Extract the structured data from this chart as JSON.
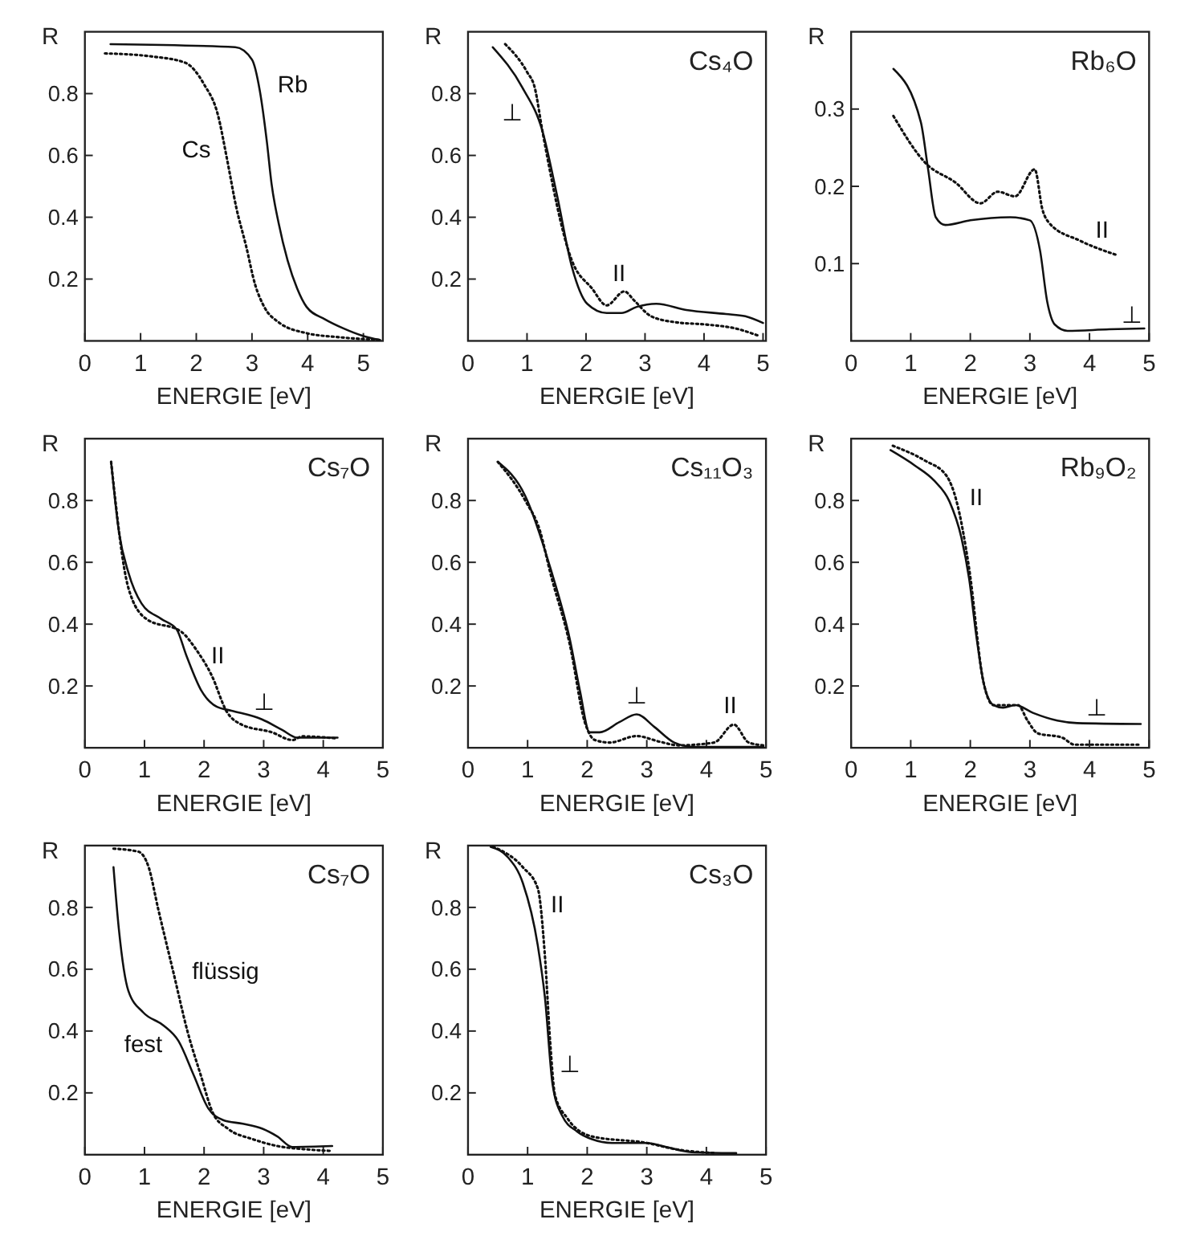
{
  "chart_data": [
    {
      "type": "line",
      "xlabel": "ENERGIE [eV]",
      "ylabel": "R",
      "xlim": [
        0,
        5.35
      ],
      "ylim": [
        0,
        1
      ],
      "xticks": [
        0,
        1,
        2,
        3,
        4,
        5
      ],
      "yticks": [
        0.2,
        0.4,
        0.6,
        0.8
      ],
      "grid": false,
      "series": [
        {
          "name": "Rb",
          "color": "#111111",
          "line_style": "solid",
          "x": [
            0.46,
            2.7,
            3.0,
            3.14,
            3.27,
            3.35,
            3.48,
            3.64,
            3.81,
            3.98,
            4.31,
            4.65,
            4.98,
            5.3
          ],
          "values": [
            0.96,
            0.95,
            0.91,
            0.81,
            0.64,
            0.51,
            0.38,
            0.26,
            0.17,
            0.11,
            0.07,
            0.04,
            0.017,
            0.003
          ]
        },
        {
          "name": "Cs",
          "color": "#111111",
          "line_style": "dotted",
          "x": [
            0.36,
            1.21,
            1.8,
            2.14,
            2.39,
            2.55,
            2.72,
            2.89,
            3.06,
            3.22,
            3.48,
            3.98,
            4.56,
            5.3
          ],
          "values": [
            0.93,
            0.92,
            0.9,
            0.83,
            0.73,
            0.59,
            0.43,
            0.31,
            0.18,
            0.11,
            0.06,
            0.025,
            0.012,
            0.003
          ]
        }
      ]
    },
    {
      "type": "line",
      "title": "Cs₄O",
      "xlabel": "ENERGIE [eV]",
      "ylabel": "R",
      "xlim": [
        0,
        5.05
      ],
      "ylim": [
        0,
        1
      ],
      "xticks": [
        0,
        1,
        2,
        3,
        4,
        5
      ],
      "yticks": [
        0.2,
        0.4,
        0.6,
        0.8
      ],
      "grid": false,
      "series": [
        {
          "name": "⊥",
          "color": "#111111",
          "line_style": "solid",
          "x": [
            0.42,
            0.92,
            1.26,
            1.51,
            1.76,
            2.02,
            2.35,
            2.6,
            2.86,
            3.19,
            3.7,
            4.37,
            4.7,
            5.0
          ],
          "values": [
            0.95,
            0.82,
            0.68,
            0.47,
            0.24,
            0.12,
            0.09,
            0.09,
            0.11,
            0.12,
            0.1,
            0.087,
            0.08,
            0.058
          ]
        },
        {
          "name": "II",
          "color": "#111111",
          "line_style": "dotted",
          "x": [
            0.63,
            1.0,
            1.13,
            1.26,
            1.76,
            2.1,
            2.35,
            2.65,
            2.82,
            3.1,
            3.53,
            4.03,
            4.54,
            4.92
          ],
          "values": [
            0.96,
            0.87,
            0.82,
            0.68,
            0.26,
            0.17,
            0.115,
            0.16,
            0.13,
            0.08,
            0.06,
            0.053,
            0.04,
            0.017
          ]
        }
      ]
    },
    {
      "type": "line",
      "title": "Rb₆O",
      "xlabel": "ENERGIE [eV]",
      "ylabel": "R",
      "xlim": [
        0,
        5
      ],
      "ylim": [
        0,
        0.4
      ],
      "xticks": [
        0,
        1,
        2,
        3,
        4,
        5
      ],
      "yticks": [
        0.1,
        0.2,
        0.3
      ],
      "grid": false,
      "series": [
        {
          "name": "⊥",
          "color": "#111111",
          "line_style": "solid",
          "x": [
            0.71,
            1.17,
            1.29,
            1.42,
            1.58,
            2.0,
            2.67,
            3.0,
            3.17,
            3.29,
            3.42,
            3.63,
            4.33,
            4.92
          ],
          "values": [
            0.352,
            0.283,
            0.223,
            0.16,
            0.15,
            0.156,
            0.16,
            0.156,
            0.117,
            0.051,
            0.021,
            0.013,
            0.015,
            0.016
          ]
        },
        {
          "name": "II",
          "color": "#111111",
          "line_style": "dotted",
          "x": [
            0.71,
            1.25,
            1.75,
            2.17,
            2.46,
            2.75,
            3.08,
            3.21,
            3.33,
            3.83,
            4.46
          ],
          "values": [
            0.291,
            0.23,
            0.205,
            0.178,
            0.193,
            0.187,
            0.222,
            0.17,
            0.152,
            0.13,
            0.111
          ]
        }
      ]
    },
    {
      "type": "line",
      "title": "Cs₇O",
      "xlabel": "ENERGIE [eV]",
      "ylabel": "R",
      "xlim": [
        0,
        5
      ],
      "ylim": [
        0,
        1
      ],
      "xticks": [
        0,
        1,
        2,
        3,
        4,
        5
      ],
      "yticks": [
        0.2,
        0.4,
        0.6,
        0.8
      ],
      "grid": false,
      "series": [
        {
          "name": "⊥",
          "color": "#111111",
          "line_style": "solid",
          "x": [
            0.44,
            0.57,
            0.73,
            0.95,
            1.28,
            1.54,
            1.7,
            1.96,
            2.21,
            2.46,
            2.97,
            3.31,
            3.56,
            4.24
          ],
          "values": [
            0.925,
            0.7,
            0.567,
            0.467,
            0.417,
            0.383,
            0.3,
            0.183,
            0.133,
            0.12,
            0.092,
            0.058,
            0.033,
            0.033
          ]
        },
        {
          "name": "II",
          "color": "#111111",
          "line_style": "dotted",
          "x": [
            0.44,
            0.73,
            1.03,
            1.62,
            1.87,
            2.13,
            2.38,
            2.63,
            3.14,
            3.48,
            3.65,
            4.24
          ],
          "values": [
            0.925,
            0.517,
            0.417,
            0.375,
            0.317,
            0.233,
            0.117,
            0.075,
            0.05,
            0.025,
            0.037,
            0.03
          ]
        }
      ]
    },
    {
      "type": "line",
      "title": "Cs₁₁O₃",
      "xlabel": "ENERGIE [eV]",
      "ylabel": "R",
      "xlim": [
        0,
        5
      ],
      "ylim": [
        0,
        1
      ],
      "xticks": [
        0,
        1,
        2,
        3,
        4,
        5
      ],
      "yticks": [
        0.2,
        0.4,
        0.6,
        0.8
      ],
      "grid": false,
      "series": [
        {
          "name": "⊥",
          "color": "#111111",
          "line_style": "solid",
          "x": [
            0.5,
            0.96,
            1.38,
            1.71,
            1.88,
            2.04,
            2.21,
            2.54,
            2.83,
            3.13,
            3.46,
            3.79,
            4.96
          ],
          "values": [
            0.925,
            0.815,
            0.583,
            0.35,
            0.183,
            0.05,
            0.05,
            0.083,
            0.108,
            0.067,
            0.017,
            0.003,
            0.003
          ]
        },
        {
          "name": "II",
          "color": "#111111",
          "line_style": "dotted",
          "x": [
            0.5,
            0.96,
            1.21,
            1.38,
            1.71,
            1.96,
            2.13,
            2.38,
            2.83,
            3.21,
            3.54,
            4.13,
            4.46,
            4.71,
            4.96
          ],
          "values": [
            0.925,
            0.8,
            0.7,
            0.567,
            0.333,
            0.083,
            0.025,
            0.017,
            0.038,
            0.02,
            0.008,
            0.017,
            0.075,
            0.017,
            0.008
          ]
        }
      ]
    },
    {
      "type": "line",
      "title": "Rb₉O₂",
      "xlabel": "ENERGIE [eV]",
      "ylabel": "R",
      "xlim": [
        0,
        5
      ],
      "ylim": [
        0,
        1
      ],
      "xticks": [
        0,
        1,
        2,
        3,
        4,
        5
      ],
      "yticks": [
        0.2,
        0.4,
        0.6,
        0.8
      ],
      "grid": false,
      "series": [
        {
          "name": "⊥",
          "color": "#111111",
          "line_style": "solid",
          "x": [
            0.66,
            1.07,
            1.4,
            1.65,
            1.85,
            1.98,
            2.1,
            2.22,
            2.39,
            2.55,
            2.76,
            3.05,
            3.46,
            3.79,
            4.86
          ],
          "values": [
            0.963,
            0.913,
            0.863,
            0.797,
            0.68,
            0.547,
            0.363,
            0.213,
            0.138,
            0.13,
            0.138,
            0.113,
            0.088,
            0.08,
            0.077
          ]
        },
        {
          "name": "II",
          "color": "#111111",
          "line_style": "dotted",
          "x": [
            0.7,
            1.23,
            1.6,
            1.77,
            1.98,
            2.22,
            2.39,
            2.8,
            2.96,
            3.13,
            3.54,
            3.75,
            4.86
          ],
          "values": [
            0.977,
            0.93,
            0.88,
            0.797,
            0.58,
            0.213,
            0.138,
            0.138,
            0.088,
            0.047,
            0.033,
            0.01,
            0.01
          ]
        }
      ]
    },
    {
      "type": "line",
      "title": "Cs₇O",
      "xlabel": "ENERGIE [eV]",
      "ylabel": "R",
      "xlim": [
        0,
        5
      ],
      "ylim": [
        0,
        1
      ],
      "xticks": [
        0,
        1,
        2,
        3,
        4,
        5
      ],
      "yticks": [
        0.2,
        0.4,
        0.6,
        0.8
      ],
      "grid": false,
      "series": [
        {
          "name": "fest",
          "color": "#111111",
          "line_style": "solid",
          "x": [
            0.48,
            0.57,
            0.73,
            0.98,
            1.32,
            1.57,
            1.82,
            2.07,
            2.32,
            2.65,
            2.98,
            3.23,
            3.48,
            4.15
          ],
          "values": [
            0.93,
            0.73,
            0.53,
            0.46,
            0.418,
            0.368,
            0.26,
            0.15,
            0.112,
            0.1,
            0.084,
            0.059,
            0.025,
            0.028
          ]
        },
        {
          "name": "flüssig",
          "color": "#111111",
          "line_style": "dotted",
          "x": [
            0.48,
            0.9,
            1.07,
            1.23,
            1.48,
            1.73,
            1.94,
            2.15,
            2.4,
            2.82,
            3.23,
            3.73,
            4.15
          ],
          "values": [
            0.99,
            0.98,
            0.93,
            0.795,
            0.594,
            0.393,
            0.26,
            0.134,
            0.084,
            0.05,
            0.028,
            0.017,
            0.012
          ]
        }
      ]
    },
    {
      "type": "line",
      "title": "Cs₃O",
      "xlabel": "ENERGIE [eV]",
      "ylabel": "R",
      "xlim": [
        0,
        5
      ],
      "ylim": [
        0,
        1
      ],
      "xticks": [
        0,
        1,
        2,
        3,
        4,
        5
      ],
      "yticks": [
        0.2,
        0.4,
        0.6,
        0.8
      ],
      "grid": false,
      "series": [
        {
          "name": "⊥",
          "color": "#111111",
          "line_style": "solid",
          "x": [
            0.38,
            0.67,
            0.92,
            1.17,
            1.29,
            1.42,
            1.58,
            1.83,
            2.08,
            2.42,
            3.0,
            3.33,
            3.75,
            4.5
          ],
          "values": [
            0.996,
            0.962,
            0.879,
            0.678,
            0.51,
            0.226,
            0.126,
            0.075,
            0.05,
            0.038,
            0.038,
            0.025,
            0.008,
            0.005
          ]
        },
        {
          "name": "II",
          "color": "#111111",
          "line_style": "dotted",
          "x": [
            0.42,
            0.92,
            1.17,
            1.29,
            1.38,
            1.46,
            1.67,
            2.08,
            3.0,
            3.5,
            4.17
          ],
          "values": [
            0.996,
            0.93,
            0.862,
            0.644,
            0.36,
            0.192,
            0.117,
            0.059,
            0.038,
            0.017,
            0.005
          ]
        }
      ]
    }
  ]
}
